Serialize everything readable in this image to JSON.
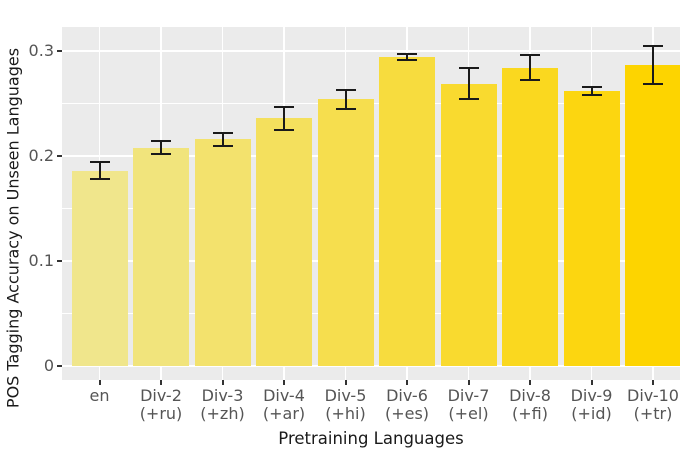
{
  "chart_data": {
    "type": "bar",
    "title": "",
    "xlabel": "Pretraining Languages",
    "ylabel": "POS Tagging Accuracy on Unseen Languages",
    "categories": [
      {
        "line1": "en",
        "line2": ""
      },
      {
        "line1": "Div-2",
        "line2": "(+ru)"
      },
      {
        "line1": "Div-3",
        "line2": "(+zh)"
      },
      {
        "line1": "Div-4",
        "line2": "(+ar)"
      },
      {
        "line1": "Div-5",
        "line2": "(+hi)"
      },
      {
        "line1": "Div-6",
        "line2": "(+es)"
      },
      {
        "line1": "Div-7",
        "line2": "(+el)"
      },
      {
        "line1": "Div-8",
        "line2": "(+fi)"
      },
      {
        "line1": "Div-9",
        "line2": "(+id)"
      },
      {
        "line1": "Div-10",
        "line2": "(+tr)"
      }
    ],
    "values": [
      0.186,
      0.208,
      0.216,
      0.236,
      0.254,
      0.294,
      0.269,
      0.284,
      0.262,
      0.287
    ],
    "errors": [
      0.008,
      0.006,
      0.006,
      0.011,
      0.009,
      0.003,
      0.015,
      0.012,
      0.004,
      0.018
    ],
    "yticks": [
      {
        "value": 0,
        "label": "0"
      },
      {
        "value": 0.1,
        "label": "0.1"
      },
      {
        "value": 0.2,
        "label": "0.2"
      },
      {
        "value": 0.3,
        "label": "0.3"
      }
    ],
    "yticks_minor": [
      0.05,
      0.15,
      0.25
    ],
    "ylim": [
      -0.012,
      0.322
    ],
    "grid": true,
    "legend": "none",
    "bar_colors": [
      "#F0E68C",
      "#F1E47C",
      "#F3E26D",
      "#F4E05D",
      "#F6DE4E",
      "#F7DC3E",
      "#F9DA2F",
      "#FAD81F",
      "#FCD610",
      "#FDD400"
    ],
    "colors": {
      "panel_bg": "#EBEBEB",
      "figure_bg": "#FFFFFF",
      "grid": "#FFFFFF",
      "error_bar": "#1A1A1A",
      "tick_label": "#555555",
      "axis_title": "#1A1A1A",
      "tick_mark": "#333333"
    }
  }
}
